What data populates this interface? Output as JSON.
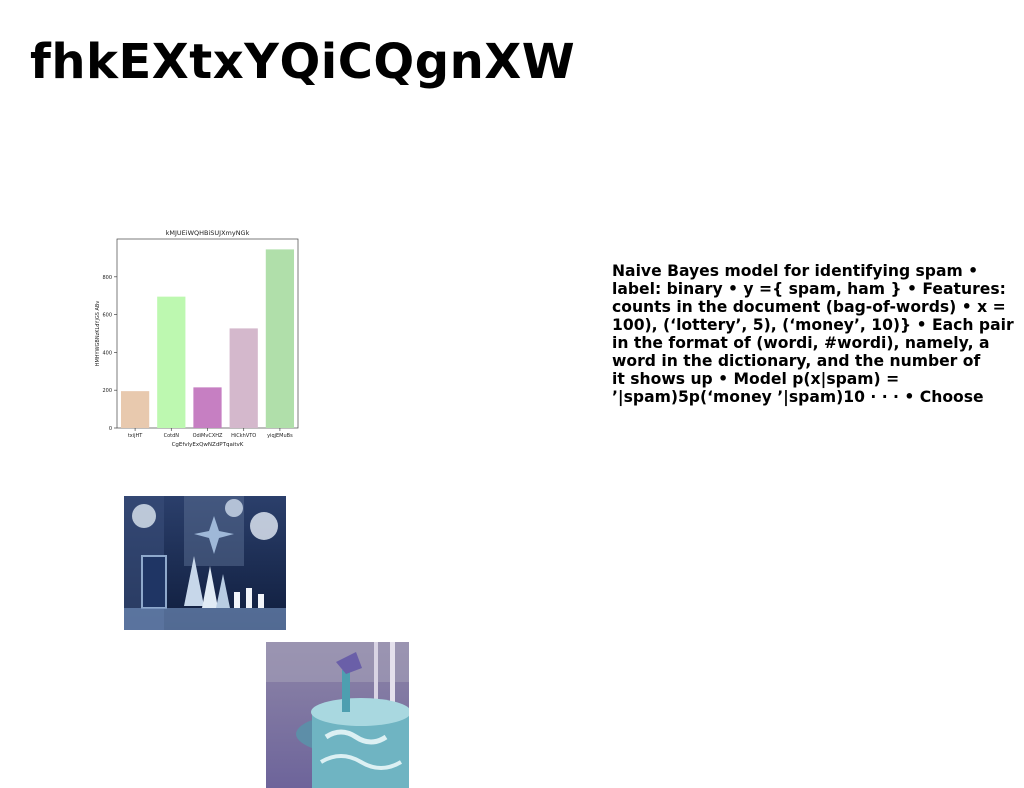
{
  "page": {
    "title": "fhkEXtxYQiCQgnXW",
    "body_text": "Naive Bayes model for identifying spam •\nlabel: binary • y ={ spam, ham } • Features:\ncounts in the document (bag-of-words) • x =\n100), (‘lottery’, 5), (‘money’, 10)} • Each pair\nin the format of (wordi, #wordi), namely, a\nword in the dictionary, and the number of\nit shows up • Model p(x|spam) =\n’|spam)5p(‘money ’|spam)10 · · · • Choose"
  },
  "images": [
    {
      "name": "photo-winter-display",
      "colors": [
        "#1a2f5e",
        "#9fb8d8",
        "#e6eef7"
      ]
    },
    {
      "name": "photo-lavender-field",
      "colors": [
        "#7c74a8",
        "#b9b2d6",
        "#6fb4c2"
      ]
    }
  ],
  "chart_data": {
    "type": "bar",
    "title": "kMJUEiWQHBiSUJXmyNGk",
    "xlabel": "CgEfvlyExQwNZdPTqaitvK",
    "ylabel": "HMHYWGBNzKLdYjGS ABv",
    "categories": [
      "txijHT",
      "CotdN",
      "OdiMvCXHZ",
      "HiCkhVTO",
      "yiqjEMuBs"
    ],
    "values": [
      195,
      695,
      215,
      527,
      945
    ],
    "colors": [
      "#e8c9ae",
      "#bdf8b0",
      "#c67fc2",
      "#d4b8cc",
      "#b0dfaa"
    ],
    "yticks": [
      0,
      200,
      400,
      600,
      800
    ],
    "ylim": [
      0,
      1000
    ],
    "grid": false
  }
}
